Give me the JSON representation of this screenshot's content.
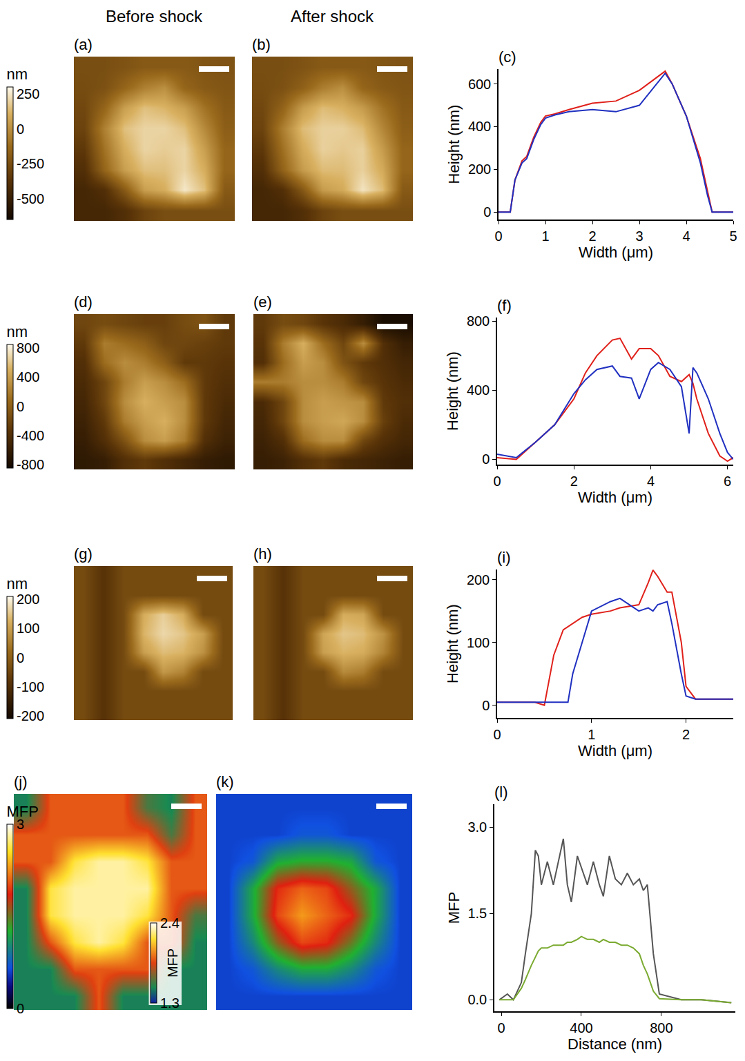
{
  "chart_data": [
    {
      "type": "heatmap",
      "label": "(a)",
      "title": "Before shock",
      "color": "gold",
      "tick_labels": false,
      "zlim": [
        -650,
        300
      ],
      "colorbar": {
        "title": "nm",
        "ticks": [
          250,
          0,
          -250,
          -500
        ]
      },
      "cells": [
        [
          -250,
          -250,
          -230,
          -200,
          -200,
          -200,
          -220,
          -230
        ],
        [
          -260,
          -240,
          -150,
          -50,
          0,
          -150,
          -200,
          -220
        ],
        [
          -280,
          -150,
          50,
          150,
          120,
          50,
          -100,
          -200
        ],
        [
          -300,
          -50,
          150,
          200,
          200,
          150,
          -20,
          -180
        ],
        [
          -350,
          -100,
          100,
          200,
          180,
          200,
          50,
          -150
        ],
        [
          -400,
          -150,
          50,
          150,
          150,
          200,
          100,
          -150
        ],
        [
          -450,
          -400,
          -200,
          50,
          100,
          250,
          150,
          -200
        ],
        [
          -450,
          -450,
          -400,
          -300,
          -250,
          -250,
          -250,
          -250
        ]
      ]
    },
    {
      "type": "heatmap",
      "label": "(b)",
      "title": "After shock",
      "color": "gold",
      "tick_labels": false,
      "zlim": [
        -650,
        300
      ],
      "cells": [
        [
          -250,
          -250,
          -230,
          -200,
          -200,
          -200,
          -220,
          -230
        ],
        [
          -260,
          -240,
          -170,
          -60,
          0,
          -150,
          -200,
          -220
        ],
        [
          -280,
          -160,
          40,
          140,
          110,
          40,
          -100,
          -200
        ],
        [
          -300,
          -60,
          140,
          190,
          190,
          140,
          -30,
          -180
        ],
        [
          -350,
          -110,
          90,
          190,
          170,
          190,
          40,
          -150
        ],
        [
          -400,
          -160,
          40,
          140,
          140,
          190,
          90,
          -150
        ],
        [
          -450,
          -400,
          -210,
          40,
          90,
          240,
          140,
          -200
        ],
        [
          -450,
          -450,
          -400,
          -300,
          -250,
          -250,
          -250,
          -250
        ]
      ]
    },
    {
      "type": "line",
      "label": "(c)",
      "x_label": "Width (μm)",
      "y_label": "Height (nm)",
      "grid": false,
      "xlim": [
        0,
        5
      ],
      "ylim": [
        -35,
        670
      ],
      "xticks": [
        0,
        1,
        2,
        3,
        4,
        5
      ],
      "yticks": [
        0,
        200,
        400,
        600
      ],
      "x": [
        0,
        0.25,
        0.35,
        0.5,
        0.6,
        0.75,
        0.9,
        1.0,
        1.2,
        1.5,
        2.0,
        2.5,
        3.0,
        3.3,
        3.55,
        3.7,
        4.0,
        4.3,
        4.45,
        4.55,
        4.6,
        5.0
      ],
      "series": [
        {
          "color": "#e0201a",
          "values": [
            0,
            0,
            150,
            240,
            260,
            350,
            420,
            450,
            460,
            480,
            510,
            520,
            570,
            620,
            660,
            600,
            450,
            250,
            100,
            0,
            0,
            0
          ]
        },
        {
          "color": "#2030c0",
          "values": [
            0,
            0,
            150,
            230,
            250,
            340,
            410,
            440,
            455,
            470,
            480,
            470,
            500,
            580,
            650,
            600,
            450,
            230,
            80,
            0,
            0,
            0
          ]
        }
      ]
    },
    {
      "type": "heatmap",
      "label": "(d)",
      "color": "gold",
      "tick_labels": false,
      "zlim": [
        -850,
        850
      ],
      "colorbar": {
        "title": "nm",
        "ticks": [
          800,
          400,
          0,
          -400,
          -800
        ]
      },
      "cells": [
        [
          -200,
          -150,
          -200,
          -250,
          -250,
          -150,
          -100,
          -300
        ],
        [
          -300,
          200,
          100,
          0,
          -200,
          -200,
          -250,
          -300
        ],
        [
          -400,
          100,
          300,
          200,
          0,
          -300,
          -300,
          -350
        ],
        [
          -450,
          -200,
          200,
          400,
          300,
          100,
          -300,
          -400
        ],
        [
          -500,
          -200,
          300,
          500,
          400,
          300,
          -300,
          -450
        ],
        [
          -550,
          -300,
          200,
          400,
          500,
          300,
          -300,
          -500
        ],
        [
          -600,
          -400,
          -100,
          300,
          400,
          200,
          -400,
          -550
        ],
        [
          -650,
          -600,
          -400,
          -300,
          -400,
          -500,
          -600,
          -650
        ]
      ]
    },
    {
      "type": "heatmap",
      "label": "(e)",
      "color": "gold",
      "tick_labels": false,
      "zlim": [
        -850,
        850
      ],
      "cells": [
        [
          -300,
          -150,
          -200,
          -350,
          -450,
          -600,
          -800,
          -800
        ],
        [
          -350,
          200,
          500,
          100,
          -200,
          300,
          -400,
          -600
        ],
        [
          -400,
          100,
          400,
          300,
          -100,
          -300,
          -400,
          -500
        ],
        [
          200,
          200,
          300,
          300,
          200,
          -200,
          -350,
          -450
        ],
        [
          -450,
          -200,
          300,
          400,
          350,
          300,
          -300,
          -400
        ],
        [
          -500,
          -200,
          300,
          400,
          450,
          300,
          -250,
          -450
        ],
        [
          -550,
          -400,
          100,
          300,
          300,
          -200,
          -400,
          -500
        ],
        [
          -600,
          -550,
          -400,
          -300,
          -450,
          -500,
          -550,
          -600
        ]
      ]
    },
    {
      "type": "line",
      "label": "(f)",
      "x_label": "Width (μm)",
      "y_label": "Height (nm)",
      "grid": false,
      "xlim": [
        0,
        6.15
      ],
      "ylim": [
        -30,
        820
      ],
      "xticks": [
        0,
        2,
        4,
        6
      ],
      "yticks": [
        0,
        400,
        800
      ],
      "x": [
        0,
        0.5,
        1,
        1.5,
        2,
        2.3,
        2.6,
        3.0,
        3.2,
        3.5,
        3.7,
        4.0,
        4.2,
        4.5,
        4.8,
        5.0,
        5.1,
        5.2,
        5.5,
        5.8,
        6.0,
        6.15
      ],
      "series": [
        {
          "color": "#e0201a",
          "values": [
            10,
            0,
            100,
            200,
            350,
            500,
            600,
            690,
            700,
            580,
            640,
            640,
            600,
            480,
            450,
            490,
            440,
            350,
            150,
            20,
            -10,
            10
          ]
        },
        {
          "color": "#2030c0",
          "values": [
            30,
            10,
            100,
            200,
            380,
            460,
            520,
            540,
            480,
            470,
            350,
            520,
            560,
            520,
            420,
            150,
            530,
            500,
            350,
            150,
            40,
            0
          ]
        }
      ]
    },
    {
      "type": "heatmap",
      "label": "(g)",
      "color": "gold",
      "tick_labels": false,
      "zlim": [
        -210,
        210
      ],
      "colorbar": {
        "title": "nm",
        "ticks": [
          200,
          100,
          0,
          -100,
          -200
        ]
      },
      "cells": [
        [
          -40,
          -90,
          -40,
          -40,
          -40,
          -40,
          -40,
          -40
        ],
        [
          -40,
          -90,
          -40,
          -40,
          -40,
          -40,
          -40,
          -40
        ],
        [
          -40,
          -90,
          -40,
          120,
          160,
          120,
          -40,
          -40
        ],
        [
          -40,
          -90,
          -40,
          130,
          170,
          150,
          100,
          -40
        ],
        [
          -40,
          -90,
          -40,
          100,
          140,
          130,
          80,
          -40
        ],
        [
          -40,
          -90,
          -40,
          -40,
          90,
          60,
          -40,
          -40
        ],
        [
          -40,
          -90,
          -40,
          -40,
          -40,
          -40,
          -40,
          -40
        ],
        [
          -40,
          -90,
          -40,
          -40,
          -40,
          -40,
          -40,
          -40
        ]
      ]
    },
    {
      "type": "heatmap",
      "label": "(h)",
      "color": "gold",
      "tick_labels": false,
      "zlim": [
        -210,
        210
      ],
      "cells": [
        [
          -40,
          -90,
          -40,
          -40,
          -40,
          -40,
          -40,
          -40
        ],
        [
          -40,
          -90,
          -40,
          -40,
          -40,
          -40,
          -40,
          -40
        ],
        [
          -40,
          -90,
          -40,
          -40,
          120,
          110,
          -40,
          -40
        ],
        [
          -40,
          -90,
          -40,
          110,
          150,
          140,
          80,
          -40
        ],
        [
          -40,
          -90,
          -40,
          100,
          130,
          120,
          60,
          -40
        ],
        [
          -40,
          -90,
          -40,
          -40,
          70,
          50,
          -40,
          -40
        ],
        [
          -40,
          -90,
          -40,
          -40,
          -40,
          -40,
          -40,
          -40
        ],
        [
          -40,
          -90,
          -40,
          -40,
          -40,
          -40,
          -40,
          -40
        ]
      ]
    },
    {
      "type": "line",
      "label": "(i)",
      "x_label": "Width (μm)",
      "y_label": "Height (nm)",
      "grid": false,
      "xlim": [
        0,
        2.5
      ],
      "ylim": [
        -20,
        216
      ],
      "xticks": [
        0,
        1,
        2
      ],
      "yticks": [
        0,
        100,
        200
      ],
      "x": [
        0,
        0.4,
        0.5,
        0.6,
        0.7,
        0.75,
        0.8,
        0.9,
        1.0,
        1.2,
        1.3,
        1.5,
        1.6,
        1.65,
        1.7,
        1.8,
        1.85,
        1.95,
        2.0,
        2.1,
        2.5
      ],
      "series": [
        {
          "color": "#e0201a",
          "values": [
            5,
            5,
            0,
            80,
            120,
            125,
            130,
            140,
            145,
            150,
            155,
            160,
            195,
            215,
            205,
            180,
            180,
            100,
            30,
            10,
            10
          ]
        },
        {
          "color": "#2030c0",
          "values": [
            5,
            5,
            5,
            5,
            5,
            5,
            50,
            100,
            150,
            165,
            170,
            150,
            155,
            150,
            160,
            165,
            130,
            50,
            15,
            10,
            10
          ]
        }
      ]
    },
    {
      "type": "heatmap",
      "label": "(j)",
      "color": "green-red-yellow",
      "tick_labels": false,
      "zlim": [
        1.3,
        2.4
      ],
      "colorbar": {
        "title": "MFP",
        "ticks": [
          1.3,
          2.4
        ]
      },
      "cells": [
        [
          1.5,
          1.9,
          1.9,
          1.9,
          1.9,
          1.6,
          1.5,
          1.9
        ],
        [
          1.9,
          1.9,
          1.9,
          1.9,
          1.9,
          1.9,
          1.6,
          1.9
        ],
        [
          1.9,
          1.9,
          2.2,
          2.3,
          2.3,
          2.2,
          1.9,
          1.9
        ],
        [
          1.5,
          2.2,
          2.3,
          2.3,
          2.3,
          2.3,
          1.9,
          1.9
        ],
        [
          1.5,
          2.2,
          2.3,
          2.3,
          2.3,
          2.2,
          1.9,
          1.6
        ],
        [
          1.5,
          1.9,
          2.2,
          2.3,
          2.2,
          1.9,
          1.9,
          1.5
        ],
        [
          1.5,
          1.5,
          1.9,
          1.9,
          1.9,
          1.9,
          1.5,
          1.5
        ],
        [
          1.5,
          1.5,
          1.5,
          1.9,
          1.5,
          1.5,
          1.5,
          1.5
        ]
      ]
    },
    {
      "type": "heatmap",
      "label": "(k)",
      "color": "blue-green-red",
      "tick_labels": false,
      "zlim": [
        0,
        3
      ],
      "colorbar": {
        "title": "MFP",
        "ticks": [
          0,
          3
        ]
      },
      "cells": [
        [
          0.6,
          0.6,
          0.6,
          0.6,
          0.6,
          0.6,
          0.6,
          0.6
        ],
        [
          0.6,
          0.6,
          0.6,
          0.7,
          0.7,
          0.6,
          0.6,
          0.6
        ],
        [
          0.6,
          0.7,
          1.2,
          1.3,
          1.3,
          1.2,
          0.7,
          0.6
        ],
        [
          0.6,
          1.2,
          1.9,
          2.1,
          2.0,
          1.6,
          1.2,
          0.6
        ],
        [
          0.6,
          1.2,
          2.0,
          2.3,
          2.1,
          1.9,
          1.2,
          0.6
        ],
        [
          0.6,
          1.0,
          1.6,
          2.0,
          1.9,
          1.5,
          1.0,
          0.6
        ],
        [
          0.6,
          0.7,
          1.0,
          1.2,
          1.2,
          1.0,
          0.7,
          0.6
        ],
        [
          0.6,
          0.6,
          0.6,
          0.6,
          0.6,
          0.6,
          0.6,
          0.6
        ]
      ]
    },
    {
      "type": "line",
      "label": "(l)",
      "x_label": "Distance (nm)",
      "y_label": "MFP",
      "grid": false,
      "xlim": [
        -35,
        1170
      ],
      "ylim": [
        -0.2,
        3.4
      ],
      "xticks": [
        0,
        400,
        800
      ],
      "yticks": [
        {
          "value": 0,
          "label": "0.0"
        },
        {
          "value": 1.5,
          "label": "1.5"
        },
        {
          "value": 3,
          "label": "3.0"
        }
      ],
      "x": [
        -10,
        30,
        60,
        100,
        120,
        150,
        170,
        185,
        200,
        230,
        260,
        290,
        310,
        330,
        350,
        380,
        400,
        430,
        460,
        490,
        510,
        540,
        570,
        600,
        630,
        660,
        690,
        710,
        730,
        760,
        790,
        900,
        1000,
        1150
      ],
      "series": [
        {
          "color": "#555555",
          "values": [
            0,
            0.1,
            0,
            0.3,
            0.8,
            1.5,
            2.6,
            2.5,
            2.0,
            2.4,
            2.0,
            2.5,
            2.8,
            2.0,
            1.7,
            2.5,
            2.3,
            2.0,
            2.4,
            2.0,
            1.8,
            2.5,
            2.1,
            2.0,
            2.2,
            2.0,
            2.1,
            1.9,
            2.0,
            0.8,
            0.1,
            0,
            0,
            -0.05
          ]
        },
        {
          "color": "#7aaa30",
          "values": [
            0,
            0,
            0,
            0.2,
            0.35,
            0.6,
            0.75,
            0.85,
            0.9,
            0.9,
            0.95,
            0.95,
            0.95,
            1.0,
            1.0,
            1.05,
            1.1,
            1.05,
            1.05,
            1.0,
            1.05,
            1.0,
            1.0,
            0.95,
            0.95,
            0.9,
            0.8,
            0.6,
            0.45,
            0.15,
            0.02,
            0,
            0,
            -0.05
          ]
        }
      ]
    }
  ]
}
